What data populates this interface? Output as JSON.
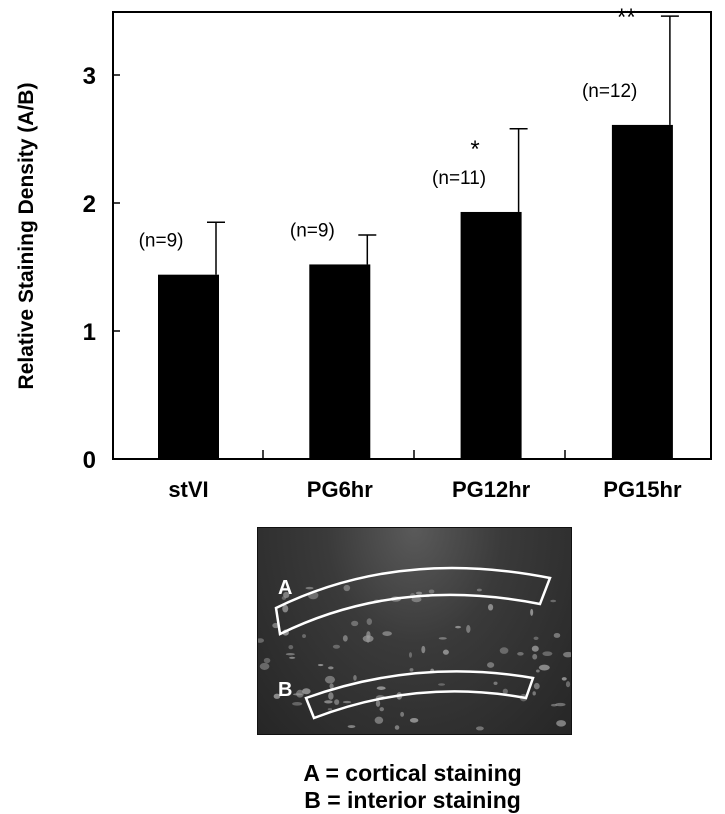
{
  "chart_data": {
    "type": "bar",
    "title": "",
    "xlabel": "",
    "ylabel": "Relative Staining Density (A/B)",
    "categories": [
      "stVI",
      "PG6hr",
      "PG12hr",
      "PG15hr"
    ],
    "values": [
      1.44,
      1.52,
      1.93,
      2.61
    ],
    "error_upper": [
      1.85,
      1.75,
      2.58,
      3.46
    ],
    "annotations": [
      "(n=9)",
      "(n=9)",
      "(n=11)",
      "(n=12)"
    ],
    "significance": [
      "",
      "",
      "*",
      "**"
    ],
    "ylim": [
      0,
      3.5
    ],
    "yticks": [
      "0",
      "1",
      "2",
      "3"
    ],
    "bar_color": "#000000",
    "grid": false
  },
  "inset": {
    "region_a_label": "A",
    "region_b_label": "B",
    "caption_a": "A = cortical staining",
    "caption_b": "B = interior staining"
  }
}
